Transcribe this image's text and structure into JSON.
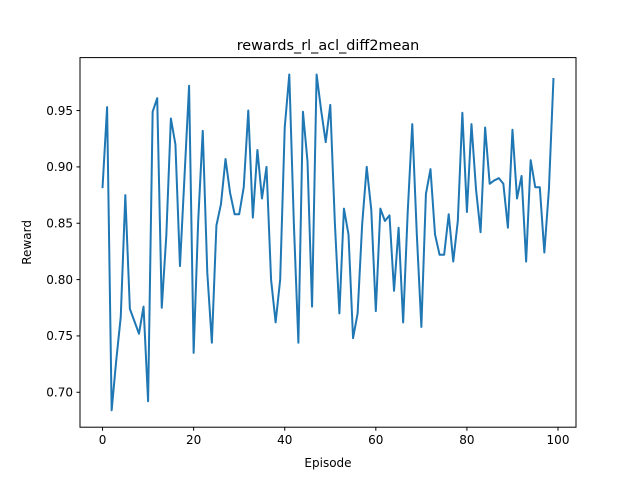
{
  "chart_data": {
    "type": "line",
    "title": "rewards_rl_acl_diff2mean",
    "xlabel": "Episode",
    "ylabel": "Reward",
    "xlim": [
      -4.95,
      103.95
    ],
    "ylim": [
      0.669,
      0.997
    ],
    "xticks": [
      0,
      20,
      40,
      60,
      80,
      100
    ],
    "yticks": [
      0.7,
      0.75,
      0.8,
      0.85,
      0.9,
      0.95
    ],
    "xtick_labels": [
      "0",
      "20",
      "40",
      "60",
      "80",
      "100"
    ],
    "ytick_labels": [
      "0.70",
      "0.75",
      "0.80",
      "0.85",
      "0.90",
      "0.95"
    ],
    "grid": false,
    "line_color": "#1f77b4",
    "series": [
      {
        "x": [
          0,
          1,
          2,
          3,
          4,
          5,
          6,
          7,
          8,
          9,
          10,
          11,
          12,
          13,
          14,
          15,
          16,
          17,
          18,
          19,
          20,
          21,
          22,
          23,
          24,
          25,
          26,
          27,
          28,
          29,
          30,
          31,
          32,
          33,
          34,
          35,
          36,
          37,
          38,
          39,
          40,
          41,
          42,
          43,
          44,
          45,
          46,
          47,
          48,
          49,
          50,
          51,
          52,
          53,
          54,
          55,
          56,
          57,
          58,
          59,
          60,
          61,
          62,
          63,
          64,
          65,
          66,
          67,
          68,
          69,
          70,
          71,
          72,
          73,
          74,
          75,
          76,
          77,
          78,
          79,
          80,
          81,
          82,
          83,
          84,
          85,
          86,
          87,
          88,
          89,
          90,
          91,
          92,
          93,
          94,
          95,
          96,
          97,
          98,
          99
        ],
        "values": [
          0.882,
          0.953,
          0.684,
          0.728,
          0.767,
          0.875,
          0.774,
          0.763,
          0.752,
          0.776,
          0.692,
          0.949,
          0.961,
          0.775,
          0.839,
          0.943,
          0.92,
          0.812,
          0.892,
          0.972,
          0.735,
          0.852,
          0.932,
          0.806,
          0.744,
          0.848,
          0.867,
          0.907,
          0.877,
          0.858,
          0.858,
          0.882,
          0.95,
          0.855,
          0.915,
          0.872,
          0.9,
          0.8,
          0.762,
          0.8,
          0.935,
          0.982,
          0.85,
          0.744,
          0.949,
          0.905,
          0.776,
          0.982,
          0.95,
          0.922,
          0.955,
          0.851,
          0.77,
          0.863,
          0.84,
          0.748,
          0.77,
          0.849,
          0.9,
          0.862,
          0.772,
          0.863,
          0.852,
          0.857,
          0.79,
          0.846,
          0.762,
          0.86,
          0.938,
          0.84,
          0.758,
          0.876,
          0.898,
          0.84,
          0.822,
          0.822,
          0.858,
          0.816,
          0.852,
          0.948,
          0.86,
          0.938,
          0.88,
          0.842,
          0.935,
          0.885,
          0.888,
          0.89,
          0.885,
          0.846,
          0.933,
          0.872,
          0.892,
          0.816,
          0.906,
          0.882,
          0.882,
          0.824,
          0.88,
          0.978
        ]
      }
    ]
  }
}
